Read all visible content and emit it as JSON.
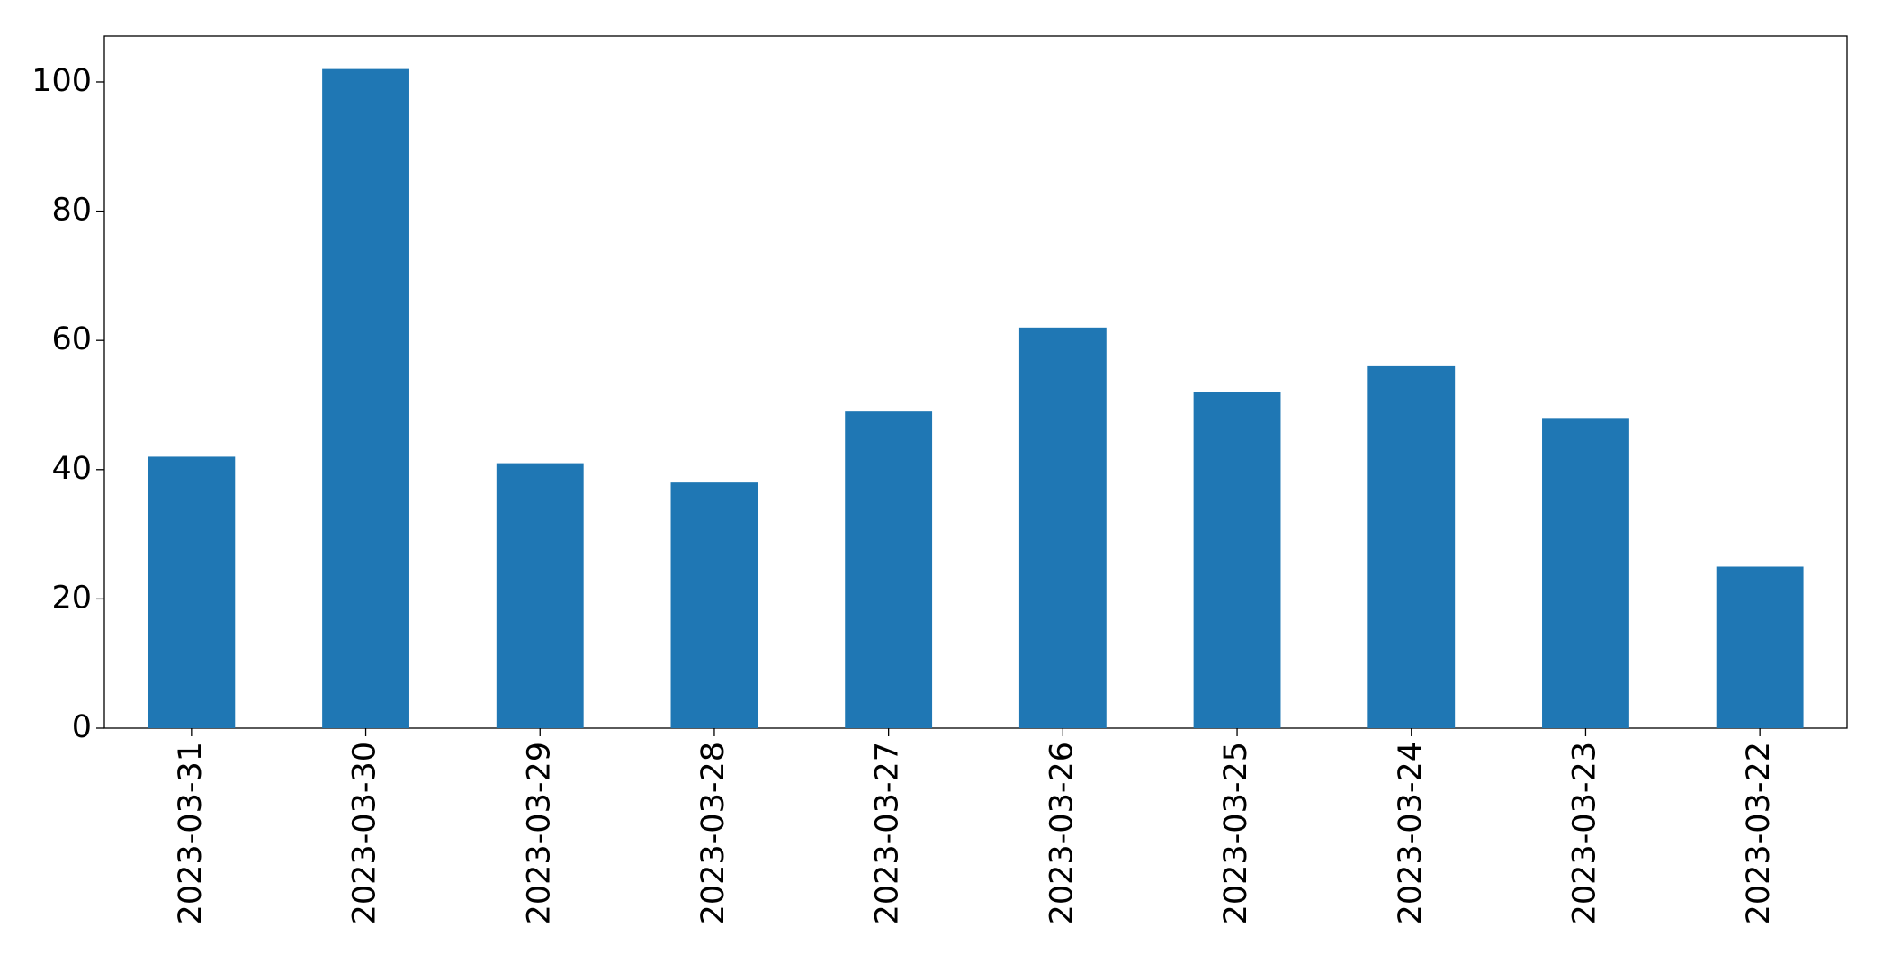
{
  "chart_data": {
    "type": "bar",
    "categories": [
      "2023-03-31",
      "2023-03-30",
      "2023-03-29",
      "2023-03-28",
      "2023-03-27",
      "2023-03-26",
      "2023-03-25",
      "2023-03-24",
      "2023-03-23",
      "2023-03-22"
    ],
    "values": [
      42,
      102,
      41,
      38,
      49,
      62,
      52,
      56,
      48,
      25
    ],
    "color": "#1f77b4",
    "ylim": [
      0,
      107.1
    ],
    "yticks": [
      0,
      20,
      40,
      60,
      80,
      100
    ],
    "grid": false
  }
}
